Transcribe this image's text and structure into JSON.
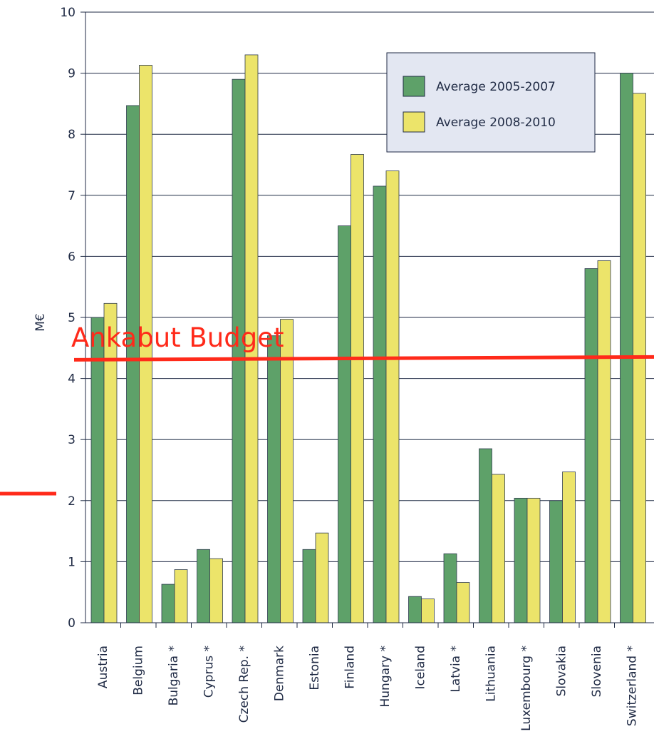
{
  "chart_data": {
    "type": "bar",
    "title": "",
    "xlabel": "",
    "ylabel": "M€",
    "ylim": [
      0,
      10
    ],
    "yticks": [
      "0",
      "1",
      "2",
      "3",
      "4",
      "5",
      "6",
      "7",
      "8",
      "9",
      "10"
    ],
    "grid": true,
    "legend_position": "top-right",
    "categories": [
      "Austria",
      "Belgium",
      "Bulgaria *",
      "Cyprus *",
      "Czech Rep. *",
      "Denmark",
      "Estonia",
      "Finland",
      "Hungary *",
      "Iceland",
      "Latvia *",
      "Lithuania",
      "Luxembourg *",
      "Slovakia",
      "Slovenia",
      "Switzerland *"
    ],
    "series": [
      {
        "name": "Average 2005-2007",
        "color": "#5ea169",
        "values": [
          5.0,
          8.47,
          0.63,
          1.2,
          8.9,
          4.7,
          1.2,
          6.5,
          7.15,
          0.43,
          1.13,
          2.85,
          2.04,
          2.0,
          5.8,
          9.0
        ]
      },
      {
        "name": "Average 2008-2010",
        "color": "#ece46a",
        "values": [
          5.23,
          9.13,
          0.87,
          1.05,
          9.3,
          4.97,
          1.47,
          7.67,
          7.4,
          0.39,
          0.66,
          2.43,
          2.04,
          2.47,
          5.93,
          8.67
        ]
      }
    ],
    "annotations": [
      {
        "text": "Ankabut Budget",
        "y": 4.33,
        "color": "#ff2a1a"
      }
    ]
  },
  "colors": {
    "grid": "#1f2a44",
    "legend_bg": "#e3e7f2",
    "annotation": "#ff2a1a"
  }
}
